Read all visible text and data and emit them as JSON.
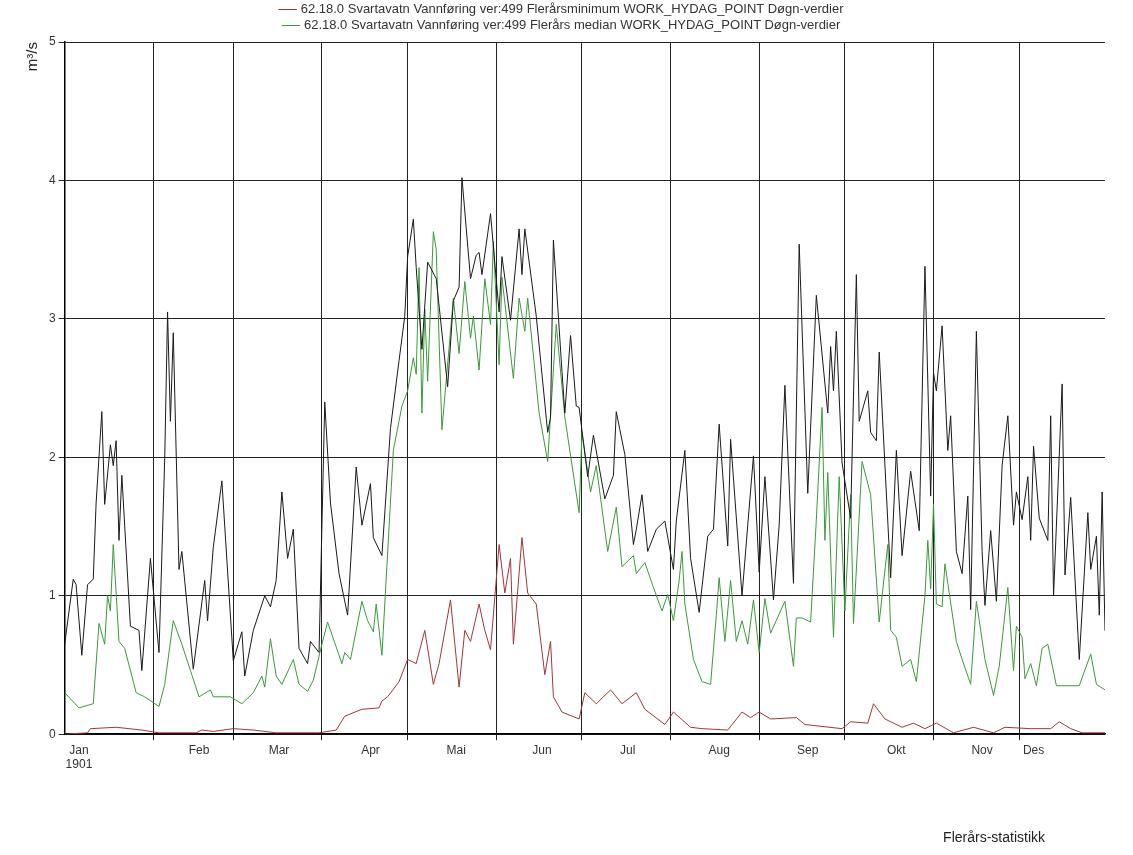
{
  "chart_data": {
    "type": "line",
    "ylabel": "m³/s",
    "legend": "top",
    "grid": true,
    "annotations": [
      "Flerårs-statistikk"
    ],
    "xlim": [
      "1901-01-01",
      "1901-12-31"
    ],
    "xticks": [
      {
        "value": "1901-01-06",
        "label": "Jan\n1901"
      },
      {
        "value": "1901-02-01",
        "label": null
      },
      {
        "value": "1901-02-17",
        "label": "Feb"
      },
      {
        "value": "1901-03-01",
        "label": null
      },
      {
        "value": "1901-03-17",
        "label": "Mar"
      },
      {
        "value": "1901-04-01",
        "label": null
      },
      {
        "value": "1901-04-18",
        "label": "Apr"
      },
      {
        "value": "1901-05-01",
        "label": null
      },
      {
        "value": "1901-05-18",
        "label": "Mai"
      },
      {
        "value": "1901-06-01",
        "label": null
      },
      {
        "value": "1901-06-17",
        "label": "Jun"
      },
      {
        "value": "1901-07-01",
        "label": null
      },
      {
        "value": "1901-07-17",
        "label": "Jul"
      },
      {
        "value": "1901-08-01",
        "label": null
      },
      {
        "value": "1901-08-18",
        "label": "Aug"
      },
      {
        "value": "1901-09-01",
        "label": null
      },
      {
        "value": "1901-09-18",
        "label": "Sep"
      },
      {
        "value": "1901-10-01",
        "label": null
      },
      {
        "value": "1901-10-19",
        "label": "Okt"
      },
      {
        "value": "1901-11-01",
        "label": null
      },
      {
        "value": "1901-11-18",
        "label": "Nov"
      },
      {
        "value": "1901-12-01",
        "label": null
      },
      {
        "value": "1901-12-06",
        "label": "Des"
      }
    ],
    "ylim": [
      0,
      5
    ],
    "yticks": [
      0,
      1,
      2,
      3,
      4,
      5
    ],
    "series": [
      {
        "color": "#1a1a1a",
        "x": [
          "1901-01-01",
          "1901-01-04",
          "1901-01-05",
          "1901-01-07",
          "1901-01-09",
          "1901-01-11",
          "1901-01-12",
          "1901-01-14",
          "1901-01-15",
          "1901-01-17",
          "1901-01-18",
          "1901-01-19",
          "1901-01-20",
          "1901-01-21",
          "1901-01-24",
          "1901-01-27",
          "1901-01-28",
          "1901-01-31",
          "1901-02-03",
          "1901-02-05",
          "1901-02-06",
          "1901-02-07",
          "1901-02-08",
          "1901-02-10",
          "1901-02-11",
          "1901-02-15",
          "1901-02-19",
          "1901-02-20",
          "1901-02-22",
          "1901-02-25",
          "1901-03-01",
          "1901-03-04",
          "1901-03-05",
          "1901-03-08",
          "1901-03-12",
          "1901-03-14",
          "1901-03-16",
          "1901-03-18",
          "1901-03-20",
          "1901-03-22",
          "1901-03-24",
          "1901-03-27",
          "1901-03-28",
          "1901-03-31",
          "1901-04-02",
          "1901-04-04",
          "1901-04-07",
          "1901-04-10",
          "1901-04-13",
          "1901-04-15",
          "1901-04-18",
          "1901-04-19",
          "1901-04-22",
          "1901-04-25",
          "1901-04-28",
          "1901-04-30",
          "1901-05-01",
          "1901-05-03",
          "1901-05-04",
          "1901-05-06",
          "1901-05-08",
          "1901-05-11",
          "1901-05-15",
          "1901-05-17",
          "1901-05-19",
          "1901-05-20",
          "1901-05-23",
          "1901-05-25",
          "1901-05-26",
          "1901-05-27",
          "1901-05-30",
          "1901-06-02",
          "1901-06-03",
          "1901-06-06",
          "1901-06-09",
          "1901-06-10",
          "1901-06-11",
          "1901-06-15",
          "1901-06-19",
          "1901-06-20",
          "1901-06-21",
          "1901-06-24",
          "1901-06-25",
          "1901-06-27",
          "1901-06-29",
          "1901-06-30",
          "1901-07-03",
          "1901-07-05",
          "1901-07-09",
          "1901-07-12",
          "1901-07-13",
          "1901-07-16",
          "1901-07-19",
          "1901-07-20",
          "1901-07-22",
          "1901-07-24",
          "1901-07-27",
          "1901-07-30",
          "1901-08-02",
          "1901-08-03",
          "1901-08-06",
          "1901-08-08",
          "1901-08-11",
          "1901-08-14",
          "1901-08-16",
          "1901-08-18",
          "1901-08-21",
          "1901-08-22",
          "1901-08-26",
          "1901-08-28",
          "1901-08-30",
          "1901-09-01",
          "1901-09-03",
          "1901-09-06",
          "1901-09-08",
          "1901-09-10",
          "1901-09-13",
          "1901-09-15",
          "1901-09-18",
          "1901-09-21",
          "1901-09-25",
          "1901-09-26",
          "1901-09-27",
          "1901-09-28",
          "1901-09-30",
          "1901-10-03",
          "1901-10-05",
          "1901-10-06",
          "1901-10-09",
          "1901-10-10",
          "1901-10-12",
          "1901-10-13",
          "1901-10-17",
          "1901-10-19",
          "1901-10-21",
          "1901-10-24",
          "1901-10-27",
          "1901-10-29",
          "1901-10-31",
          "1901-11-01",
          "1901-11-02",
          "1901-11-04",
          "1901-11-06",
          "1901-11-07",
          "1901-11-09",
          "1901-11-11",
          "1901-11-13",
          "1901-11-14",
          "1901-11-16",
          "1901-11-18",
          "1901-11-19",
          "1901-11-21",
          "1901-11-23",
          "1901-11-25",
          "1901-11-27",
          "1901-11-29",
          "1901-11-30",
          "1901-12-02",
          "1901-12-04",
          "1901-12-05",
          "1901-12-06",
          "1901-12-08",
          "1901-12-11",
          "1901-12-12",
          "1901-12-13",
          "1901-12-16",
          "1901-12-17",
          "1901-12-19",
          "1901-12-22",
          "1901-12-25",
          "1901-12-26",
          "1901-12-28",
          "1901-12-29",
          "1901-12-30",
          "1901-12-31"
        ],
        "values": [
          0.65,
          1.12,
          1.08,
          0.57,
          1.08,
          1.12,
          1.67,
          2.33,
          1.66,
          2.09,
          1.94,
          2.12,
          1.4,
          1.87,
          0.78,
          0.75,
          0.46,
          1.27,
          0.59,
          1.99,
          3.05,
          2.26,
          2.9,
          1.19,
          1.32,
          0.47,
          1.11,
          0.82,
          1.35,
          1.83,
          0.53,
          0.74,
          0.42,
          0.75,
          1.0,
          0.92,
          1.11,
          1.75,
          1.27,
          1.48,
          0.62,
          0.51,
          0.67,
          0.59,
          2.4,
          1.67,
          1.16,
          0.86,
          1.93,
          1.51,
          1.81,
          1.42,
          1.29,
          2.21,
          2.7,
          3.02,
          3.45,
          3.72,
          3.37,
          2.78,
          3.41,
          3.29,
          2.51,
          3.13,
          3.23,
          4.02,
          3.29,
          3.46,
          3.48,
          3.32,
          3.76,
          3.05,
          3.45,
          2.99,
          3.65,
          3.32,
          3.65,
          3.02,
          2.18,
          2.29,
          3.57,
          2.62,
          2.32,
          2.88,
          2.37,
          2.36,
          1.86,
          2.16,
          1.7,
          1.87,
          2.33,
          2.02,
          1.37,
          1.48,
          1.73,
          1.32,
          1.48,
          1.54,
          1.19,
          1.54,
          2.05,
          1.27,
          0.88,
          1.43,
          1.48,
          2.24,
          1.36,
          2.13,
          1.0,
          1.51,
          2.01,
          1.17,
          1.86,
          0.97,
          1.51,
          2.52,
          1.09,
          3.54,
          1.74,
          3.17,
          2.32,
          2.8,
          2.48,
          2.91,
          1.96,
          1.56,
          3.32,
          2.26,
          2.48,
          2.18,
          2.12,
          2.76,
          1.13,
          2.05,
          1.29,
          1.9,
          1.47,
          3.38,
          1.72,
          2.61,
          2.48,
          2.95,
          2.05,
          2.3,
          1.32,
          1.16,
          1.72,
          0.9,
          2.91,
          1.32,
          0.93,
          1.47,
          0.96,
          1.94,
          2.3,
          1.51,
          1.75,
          1.55,
          1.86,
          1.4,
          2.08,
          1.56,
          1.4,
          2.3,
          1.0,
          2.53,
          1.15,
          1.71,
          0.54,
          1.6,
          1.19,
          1.43,
          0.86,
          1.75,
          0.75
        ]
      },
      {
        "name": "62.18.0 Svartavatn Vannføring ver:499 Flerårsminimum WORK_HYDAG_POINT Døgn-verdier",
        "color": "#a33535",
        "x": [
          "1901-01-01",
          "1901-01-09",
          "1901-01-10",
          "1901-01-19",
          "1901-01-28",
          "1901-02-03",
          "1901-02-16",
          "1901-02-18",
          "1901-02-22",
          "1901-03-01",
          "1901-03-08",
          "1901-03-16",
          "1901-03-31",
          "1901-04-06",
          "1901-04-09",
          "1901-04-15",
          "1901-04-21",
          "1901-04-22",
          "1901-04-24",
          "1901-04-28",
          "1901-05-01",
          "1901-05-04",
          "1901-05-07",
          "1901-05-10",
          "1901-05-12",
          "1901-05-16",
          "1901-05-19",
          "1901-05-21",
          "1901-05-23",
          "1901-05-26",
          "1901-05-28",
          "1901-05-30",
          "1901-06-02",
          "1901-06-04",
          "1901-06-06",
          "1901-06-07",
          "1901-06-10",
          "1901-06-12",
          "1901-06-15",
          "1901-06-18",
          "1901-06-20",
          "1901-06-21",
          "1901-06-24",
          "1901-06-30",
          "1901-07-02",
          "1901-07-06",
          "1901-07-11",
          "1901-07-15",
          "1901-07-20",
          "1901-07-23",
          "1901-07-30",
          "1901-08-02",
          "1901-08-08",
          "1901-08-12",
          "1901-08-21",
          "1901-08-26",
          "1901-08-29",
          "1901-09-01",
          "1901-09-05",
          "1901-09-14",
          "1901-09-17",
          "1901-09-30",
          "1901-10-03",
          "1901-10-09",
          "1901-10-11",
          "1901-10-15",
          "1901-10-21",
          "1901-10-25",
          "1901-10-29",
          "1901-11-02",
          "1901-11-08",
          "1901-11-15",
          "1901-11-22",
          "1901-11-26",
          "1901-12-05",
          "1901-12-12",
          "1901-12-15",
          "1901-12-19",
          "1901-12-23",
          "1901-12-31"
        ],
        "values": [
          0.0,
          0.01,
          0.04,
          0.05,
          0.03,
          0.01,
          0.01,
          0.03,
          0.02,
          0.04,
          0.03,
          0.01,
          0.01,
          0.03,
          0.13,
          0.18,
          0.19,
          0.24,
          0.27,
          0.38,
          0.54,
          0.51,
          0.75,
          0.36,
          0.51,
          0.97,
          0.34,
          0.75,
          0.67,
          0.94,
          0.75,
          0.61,
          1.37,
          1.02,
          1.27,
          0.65,
          1.42,
          1.02,
          0.94,
          0.43,
          0.67,
          0.27,
          0.16,
          0.11,
          0.3,
          0.22,
          0.32,
          0.22,
          0.3,
          0.18,
          0.07,
          0.16,
          0.05,
          0.04,
          0.03,
          0.16,
          0.12,
          0.16,
          0.11,
          0.12,
          0.07,
          0.04,
          0.09,
          0.08,
          0.22,
          0.11,
          0.05,
          0.08,
          0.04,
          0.08,
          0.01,
          0.05,
          0.01,
          0.05,
          0.04,
          0.04,
          0.09,
          0.04,
          0.01,
          0.01
        ]
      },
      {
        "name": "62.18.0 Svartavatn Vannføring ver:499 Flerårs median WORK_HYDAG_POINT Døgn-verdier",
        "color": "#3a9a3a",
        "x": [
          "1901-01-01",
          "1901-01-06",
          "1901-01-11",
          "1901-01-13",
          "1901-01-15",
          "1901-01-16",
          "1901-01-17",
          "1901-01-18",
          "1901-01-20",
          "1901-01-22",
          "1901-01-26",
          "1901-01-29",
          "1901-02-03",
          "1901-02-05",
          "1901-02-08",
          "1901-02-11",
          "1901-02-14",
          "1901-02-17",
          "1901-02-21",
          "1901-02-22",
          "1901-02-28",
          "1901-03-04",
          "1901-03-08",
          "1901-03-11",
          "1901-03-12",
          "1901-03-14",
          "1901-03-16",
          "1901-03-18",
          "1901-03-22",
          "1901-03-24",
          "1901-03-27",
          "1901-03-29",
          "1901-04-01",
          "1901-04-03",
          "1901-04-08",
          "1901-04-09",
          "1901-04-11",
          "1901-04-15",
          "1901-04-17",
          "1901-04-19",
          "1901-04-20",
          "1901-04-22",
          "1901-04-23",
          "1901-04-26",
          "1901-04-29",
          "1901-05-01",
          "1901-05-03",
          "1901-05-04",
          "1901-05-05",
          "1901-05-06",
          "1901-05-07",
          "1901-05-08",
          "1901-05-10",
          "1901-05-11",
          "1901-05-13",
          "1901-05-16",
          "1901-05-17",
          "1901-05-19",
          "1901-05-21",
          "1901-05-23",
          "1901-05-24",
          "1901-05-26",
          "1901-05-28",
          "1901-05-30",
          "1901-05-31",
          "1901-06-02",
          "1901-06-03",
          "1901-06-07",
          "1901-06-09",
          "1901-06-11",
          "1901-06-12",
          "1901-06-16",
          "1901-06-19",
          "1901-06-22",
          "1901-06-24",
          "1901-06-25",
          "1901-06-30",
          "1901-07-01",
          "1901-07-04",
          "1901-07-06",
          "1901-07-10",
          "1901-07-13",
          "1901-07-15",
          "1901-07-19",
          "1901-07-20",
          "1901-07-23",
          "1901-07-26",
          "1901-07-29",
          "1901-07-31",
          "1901-08-02",
          "1901-08-04",
          "1901-08-05",
          "1901-08-06",
          "1901-08-09",
          "1901-08-12",
          "1901-08-15",
          "1901-08-17",
          "1901-08-18",
          "1901-08-20",
          "1901-08-22",
          "1901-08-24",
          "1901-08-26",
          "1901-08-28",
          "1901-08-30",
          "1901-09-01",
          "1901-09-03",
          "1901-09-05",
          "1901-09-10",
          "1901-09-13",
          "1901-09-14",
          "1901-09-16",
          "1901-09-19",
          "1901-09-21",
          "1901-09-23",
          "1901-09-24",
          "1901-09-25",
          "1901-09-27",
          "1901-09-29",
          "1901-10-01",
          "1901-10-03",
          "1901-10-04",
          "1901-10-07",
          "1901-10-10",
          "1901-10-13",
          "1901-10-16",
          "1901-10-17",
          "1901-10-19",
          "1901-10-21",
          "1901-10-24",
          "1901-10-26",
          "1901-10-29",
          "1901-10-30",
          "1901-10-31",
          "1901-11-01",
          "1901-11-02",
          "1901-11-04",
          "1901-11-05",
          "1901-11-09",
          "1901-11-11",
          "1901-11-14",
          "1901-11-16",
          "1901-11-19",
          "1901-11-22",
          "1901-11-24",
          "1901-11-27",
          "1901-11-29",
          "1901-11-30",
          "1901-12-02",
          "1901-12-03",
          "1901-12-05",
          "1901-12-07",
          "1901-12-09",
          "1901-12-11",
          "1901-12-14",
          "1901-12-18",
          "1901-12-22",
          "1901-12-26",
          "1901-12-28",
          "1901-12-31"
        ],
        "values": [
          0.3,
          0.19,
          0.22,
          0.8,
          0.65,
          1.0,
          0.89,
          1.37,
          0.67,
          0.62,
          0.3,
          0.27,
          0.2,
          0.36,
          0.82,
          0.65,
          0.46,
          0.27,
          0.32,
          0.27,
          0.27,
          0.22,
          0.3,
          0.42,
          0.34,
          0.69,
          0.42,
          0.36,
          0.54,
          0.36,
          0.31,
          0.39,
          0.65,
          0.81,
          0.51,
          0.59,
          0.54,
          0.96,
          0.82,
          0.74,
          0.94,
          0.57,
          0.94,
          2.05,
          2.37,
          2.48,
          2.72,
          2.6,
          3.37,
          2.32,
          3.07,
          2.55,
          3.63,
          3.5,
          2.2,
          2.91,
          3.15,
          2.75,
          3.27,
          2.86,
          3.02,
          2.63,
          3.29,
          2.96,
          3.56,
          2.67,
          3.3,
          2.57,
          3.15,
          2.91,
          3.15,
          2.32,
          1.97,
          2.96,
          2.51,
          2.29,
          1.6,
          2.18,
          1.75,
          1.94,
          1.32,
          1.64,
          1.21,
          1.29,
          1.16,
          1.24,
          1.06,
          0.89,
          1.01,
          0.82,
          1.11,
          1.32,
          0.94,
          0.54,
          0.38,
          0.36,
          0.86,
          1.13,
          0.67,
          1.11,
          0.67,
          0.82,
          0.65,
          0.97,
          0.59,
          0.98,
          0.73,
          0.96,
          0.49,
          0.84,
          0.84,
          0.81,
          1.55,
          2.36,
          1.4,
          1.89,
          0.7,
          1.86,
          0.89,
          1.73,
          0.8,
          1.97,
          1.73,
          0.81,
          1.37,
          0.75,
          0.7,
          0.49,
          0.54,
          0.38,
          1.0,
          1.4,
          1.05,
          1.66,
          0.94,
          0.92,
          1.23,
          0.67,
          0.54,
          0.36,
          0.96,
          0.54,
          0.28,
          0.49,
          1.06,
          0.46,
          0.78,
          0.7,
          0.4,
          0.51,
          0.35,
          0.62,
          0.65,
          0.35,
          0.35,
          0.35,
          0.58,
          0.36,
          0.32
        ]
      }
    ]
  }
}
